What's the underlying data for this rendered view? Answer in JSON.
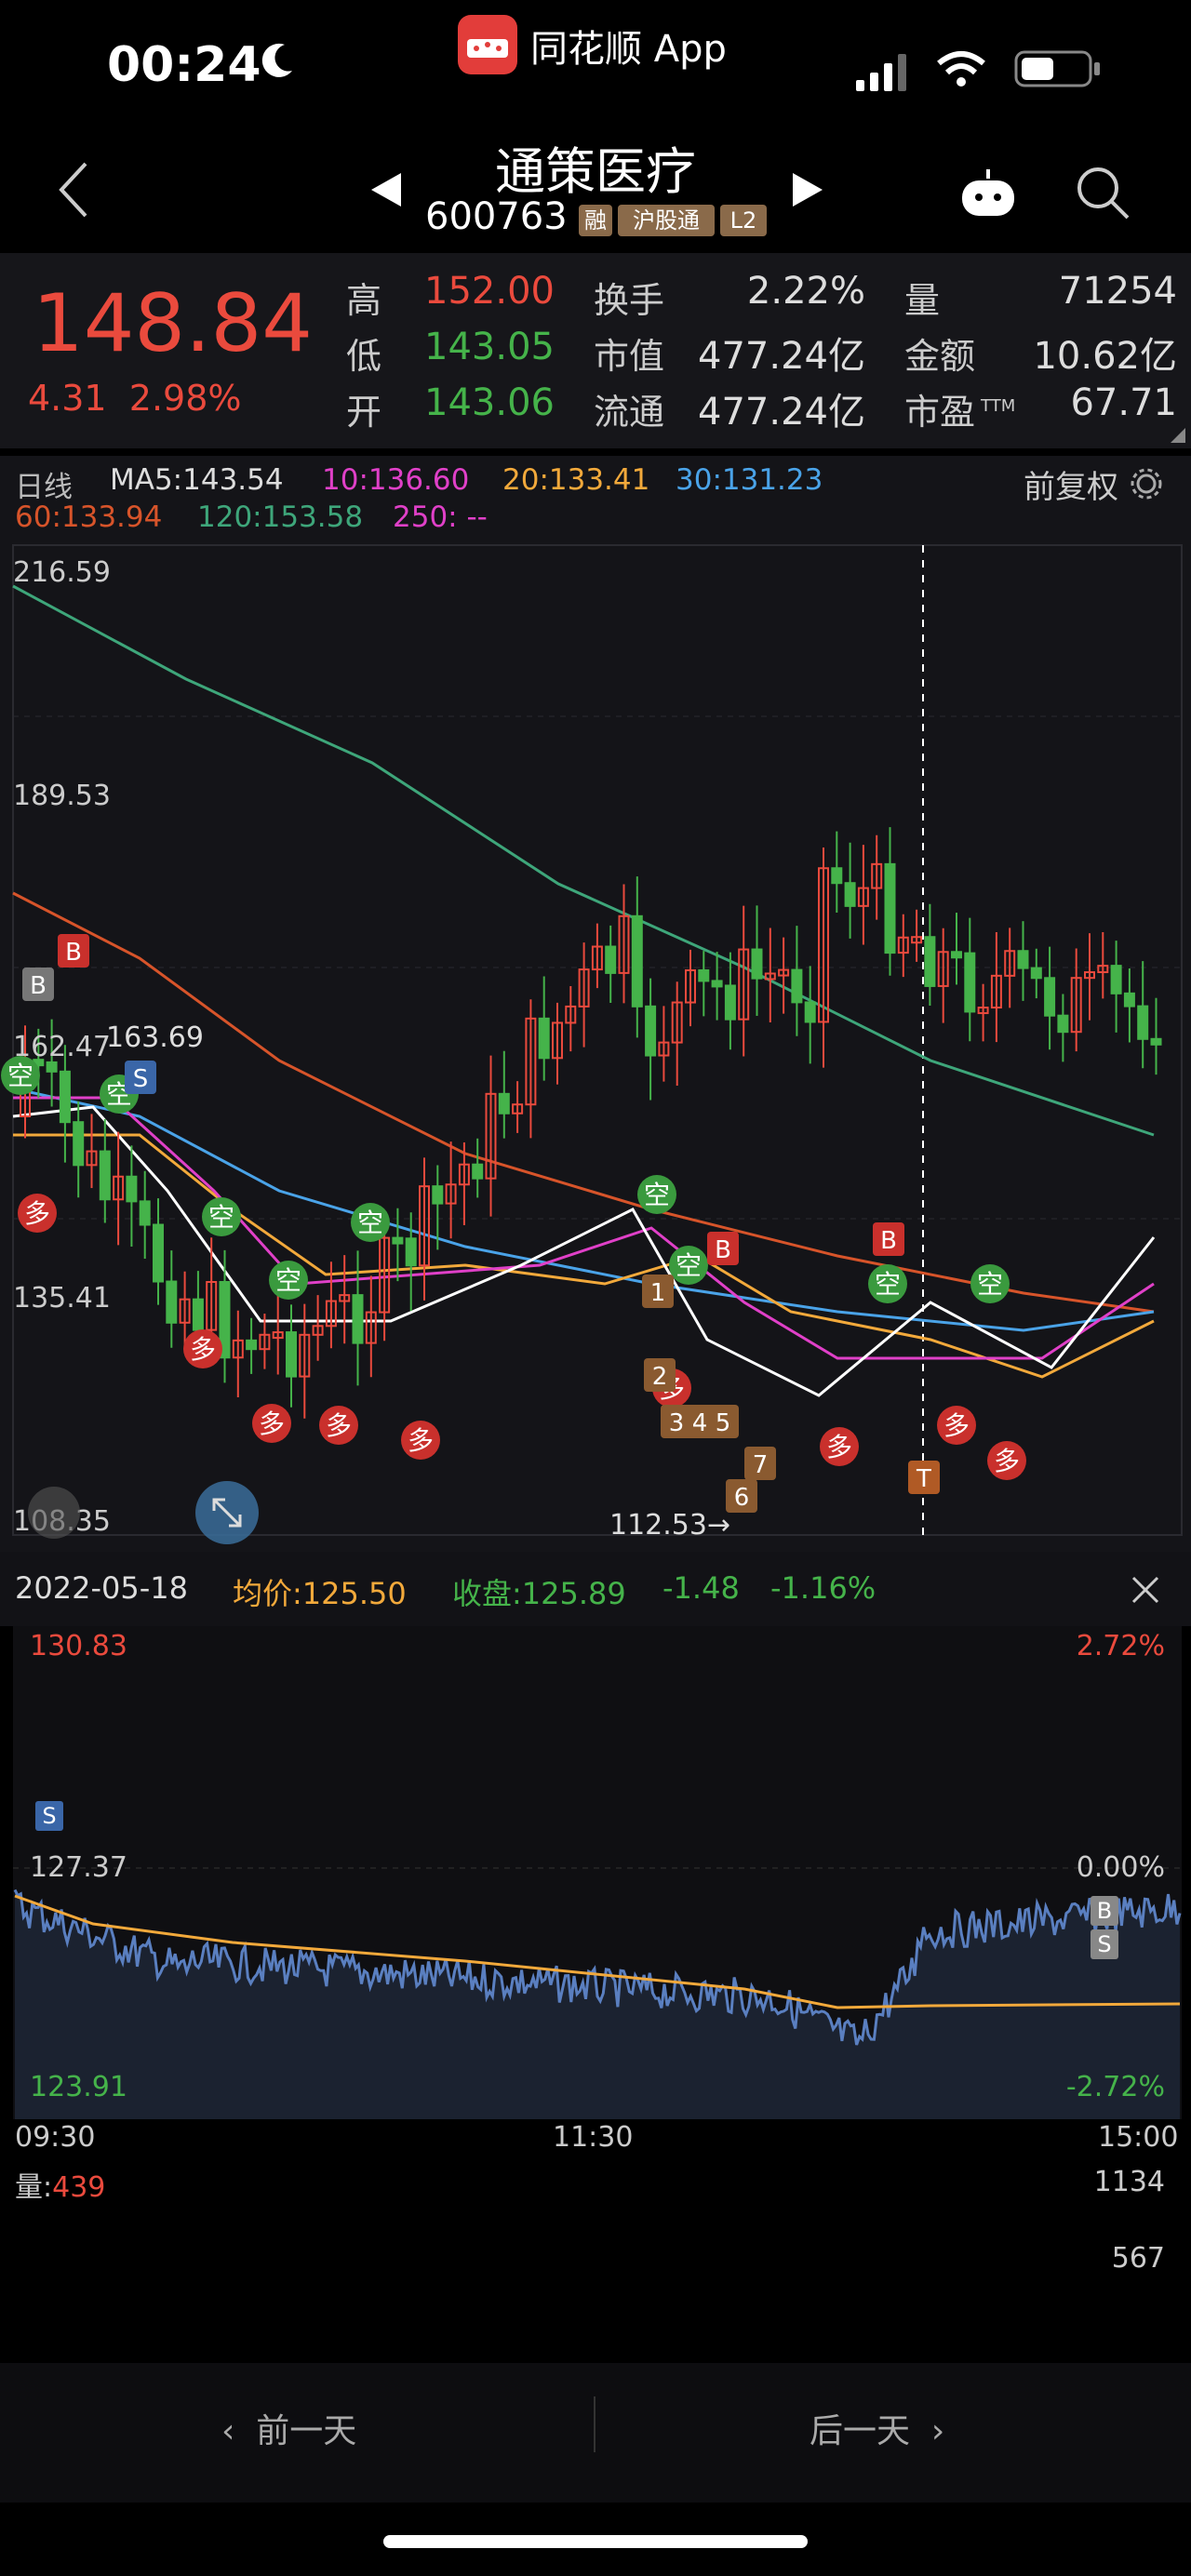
{
  "status_bar": {
    "time": "00:24",
    "app_name": "同花顺 App"
  },
  "header": {
    "title": "通策医疗",
    "code": "600763",
    "tags": [
      "融",
      "沪股通",
      "L2"
    ]
  },
  "quote": {
    "price": "148.84",
    "change": "4.31",
    "change_pct": "2.98%",
    "stats": {
      "high_label": "高",
      "high": "152.00",
      "low_label": "低",
      "low": "143.05",
      "open_label": "开",
      "open": "143.06",
      "turnover_label": "换手",
      "turnover": "2.22%",
      "mktcap_label": "市值",
      "mktcap": "477.24亿",
      "float_label": "流通",
      "float": "477.24亿",
      "volume_label": "量",
      "volume": "71254",
      "amount_label": "金额",
      "amount": "10.62亿",
      "pe_label": "市盈",
      "pe_sup": "TTM",
      "pe": "67.71"
    }
  },
  "kline": {
    "period_label": "日线",
    "ma5": "MA5:143.54",
    "ma10": "10:136.60",
    "ma20": "20:133.41",
    "ma30": "30:131.23",
    "ma60": "60:133.94",
    "ma120": "120:153.58",
    "ma250": "250: --",
    "adjust_label": "前复权",
    "y_labels": [
      "216.59",
      "189.53",
      "162.47",
      "135.41",
      "108.35"
    ],
    "high_marker": "163.69",
    "low_marker": "112.53→",
    "colors": {
      "ma5": "#ffffff",
      "ma10": "#e040c8",
      "ma20": "#f2a93b",
      "ma30": "#4aa3e8",
      "ma60": "#d7542a",
      "ma120": "#3ea67a",
      "up": "#ea4a3d",
      "down": "#45b34a"
    },
    "signal_labels": {
      "buy": "B",
      "sell": "S",
      "long": "多",
      "short": "空",
      "t": "T"
    }
  },
  "intraday": {
    "date": "2022-05-18",
    "avg_label": "均价:125.50",
    "close_label": "收盘:125.89",
    "change": "-1.48",
    "change_pct": "-1.16%",
    "y_high": "130.83",
    "y_mid": "127.37",
    "y_low": "123.91",
    "pct_high": "2.72%",
    "pct_mid": "0.00%",
    "pct_low": "-2.72%",
    "times": [
      "09:30",
      "11:30",
      "15:00"
    ],
    "vol_label": "量:",
    "vol_value": "439",
    "vol_max": "1134",
    "vol_mid": "567",
    "signal_buy": "B",
    "signal_sell": "S"
  },
  "nav": {
    "prev": "前一天",
    "next": "后一天"
  }
}
